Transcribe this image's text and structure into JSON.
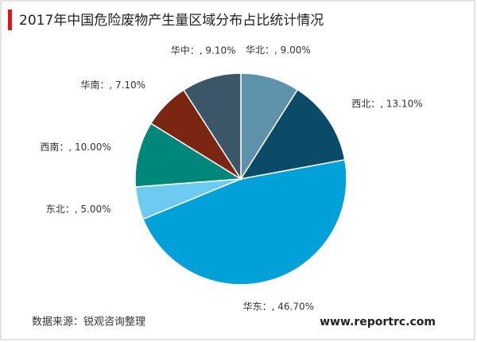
{
  "chart_data": {
    "type": "pie",
    "title": "2017年中国危险废物产生量区域分布占比统计情况",
    "categories": [
      "华北",
      "西北",
      "华东",
      "东北",
      "西南",
      "华南",
      "华中"
    ],
    "values": [
      9.0,
      13.1,
      46.7,
      5.0,
      10.0,
      7.1,
      9.1
    ],
    "value_labels": [
      "华北：, 9.00%",
      "西北：, 13.10%",
      "华东：, 46.70%",
      "东北：, 5.00%",
      "西南：, 10.00%",
      "华南：, 7.10%",
      "华中：, 9.10%"
    ],
    "colors": [
      "#5e92aa",
      "#0c4b67",
      "#00a0d9",
      "#6dcbf1",
      "#00877b",
      "#7b2513",
      "#3b5667"
    ],
    "source": "数据来源：锐观咨询整理",
    "watermark": "www.reportrc.com"
  }
}
